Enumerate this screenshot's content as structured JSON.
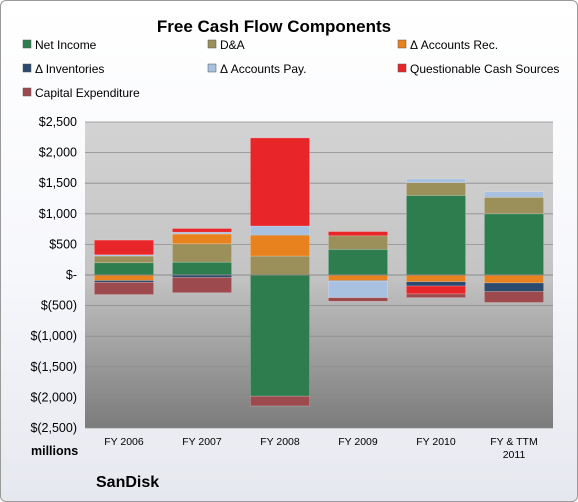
{
  "chart_data": {
    "type": "bar",
    "stacked": true,
    "title": "Free Cash Flow Components",
    "units_label": "millions",
    "company": "SanDisk",
    "categories": [
      [
        "FY 2006"
      ],
      [
        "FY 2007"
      ],
      [
        "FY 2008"
      ],
      [
        "FY 2009"
      ],
      [
        "FY 2010"
      ],
      [
        "FY & TTM",
        "2011"
      ]
    ],
    "ylim": [
      -2500,
      2500
    ],
    "yticks": [
      2500,
      2000,
      1500,
      1000,
      500,
      0,
      -500,
      -1000,
      -1500,
      -2000,
      -2500
    ],
    "ytick_labels": [
      "$2,500",
      "$2,000",
      "$1,500",
      "$1,000",
      "$500",
      "$-",
      "$(500)",
      "$(1,000)",
      "$(1,500)",
      "$(2,000)",
      "$(2,500)"
    ],
    "grid": true,
    "legend_position": "top",
    "series": [
      {
        "name": "Net Income",
        "color": "#2e7d4f",
        "values": [
          200,
          210,
          -1980,
          420,
          1300,
          1000
        ]
      },
      {
        "name": "D&A",
        "color": "#9b8f5a",
        "values": [
          110,
          300,
          310,
          220,
          210,
          270
        ]
      },
      {
        "name": "Δ Accounts Rec.",
        "color": "#e8821e",
        "values": [
          -90,
          160,
          340,
          -90,
          -110,
          -130
        ]
      },
      {
        "name": "Δ Inventories",
        "color": "#2c4a6e",
        "values": [
          -30,
          -40,
          10,
          -10,
          -70,
          -140
        ]
      },
      {
        "name": "Δ Accounts Pay.",
        "color": "#a9c1e0",
        "values": [
          20,
          30,
          140,
          -270,
          60,
          90
        ]
      },
      {
        "name": "Questionable Cash Sources",
        "color": "#e8262a",
        "values": [
          240,
          60,
          1440,
          70,
          -130,
          0
        ]
      },
      {
        "name": "Capital Expenditure",
        "color": "#9c4a4e",
        "values": [
          -200,
          -250,
          -160,
          -60,
          -60,
          -180
        ]
      }
    ]
  }
}
